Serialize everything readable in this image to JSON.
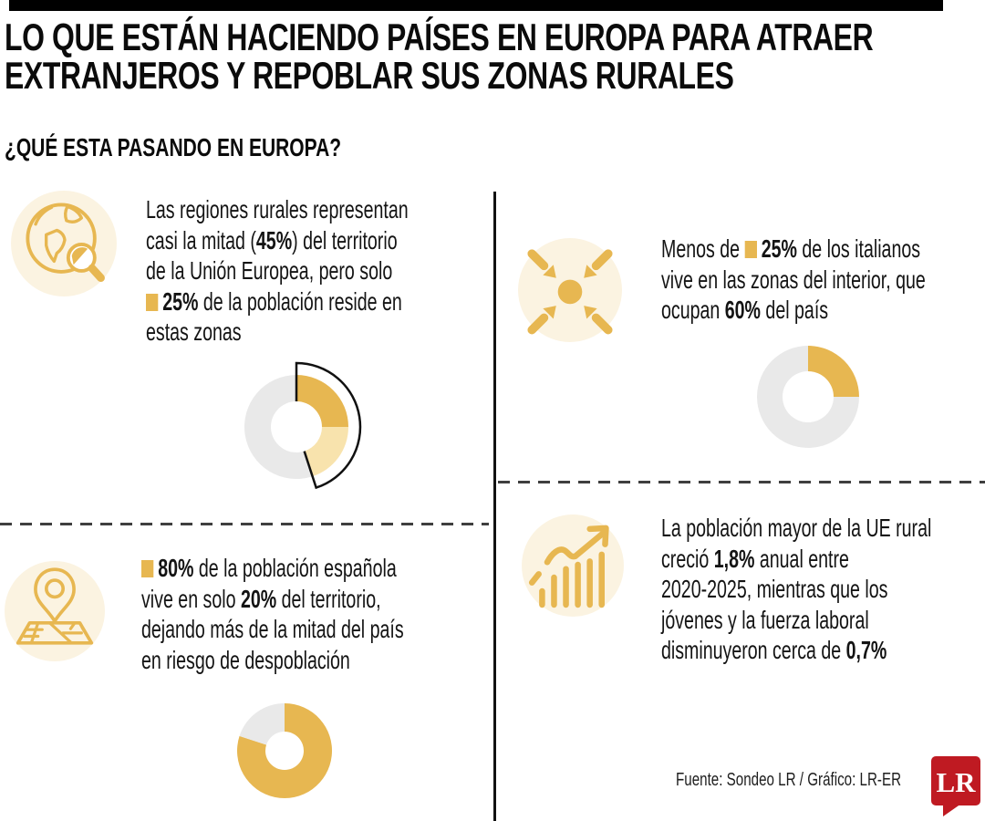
{
  "colors": {
    "gold": "#E7B751",
    "gold_light": "#F8E3AD",
    "cream": "#FBF3E1",
    "gray": "#E9E9E9",
    "ink": "#141414",
    "red": "#BF1A22",
    "dash": "#3F3F3F",
    "topbar": "#000000"
  },
  "header": {
    "title_line1": "LO QUE ESTÁN HACIENDO PAÍSES EN EUROPA PARA ATRAER",
    "title_line2": "EXTRANJEROS Y REPOBLAR SUS ZONAS RURALES",
    "section_heading": "¿QUÉ ESTA PASANDO EN EUROPA?"
  },
  "panels": [
    {
      "id": "eu-rural",
      "icon": "globe-magnifier-icon",
      "lines": [
        [
          {
            "t": "Las regiones rurales representan"
          }
        ],
        [
          {
            "t": "casi la mitad ("
          },
          {
            "t": "45%",
            "b": true
          },
          {
            "t": ") del territorio"
          }
        ],
        [
          {
            "t": "de la Unión Europea, pero solo"
          }
        ],
        [
          {
            "sq": true
          },
          {
            "t": "25%",
            "b": true
          },
          {
            "t": " de la población reside en"
          }
        ],
        [
          {
            "t": "estas zonas"
          }
        ]
      ]
    },
    {
      "id": "italia-interior",
      "icon": "converge-arrows-icon",
      "lines": [
        [
          {
            "t": "Menos de "
          },
          {
            "sq": true
          },
          {
            "t": "25%",
            "b": true
          },
          {
            "t": " de los italianos"
          }
        ],
        [
          {
            "t": "vive en las zonas del interior, que"
          }
        ],
        [
          {
            "t": "ocupan "
          },
          {
            "t": "60%",
            "b": true
          },
          {
            "t": " del país"
          }
        ]
      ]
    },
    {
      "id": "espana-despoblacion",
      "icon": "map-pin-icon",
      "lines": [
        [
          {
            "sq": true
          },
          {
            "t": "80%",
            "b": true
          },
          {
            "t": " de la población española"
          }
        ],
        [
          {
            "t": "vive en solo "
          },
          {
            "t": "20%",
            "b": true
          },
          {
            "t": " del territorio,"
          }
        ],
        [
          {
            "t": "dejando más de la mitad del país"
          }
        ],
        [
          {
            "t": "en riesgo de despoblación"
          }
        ]
      ]
    },
    {
      "id": "ue-mayores",
      "icon": "growth-chart-icon",
      "lines": [
        [
          {
            "t": "La población mayor de la UE rural"
          }
        ],
        [
          {
            "t": "creció "
          },
          {
            "t": "1,8%",
            "b": true
          },
          {
            "t": " anual entre"
          }
        ],
        [
          {
            "t": "2020-2025, mientras que los"
          }
        ],
        [
          {
            "t": "jóvenes y la fuerza laboral"
          }
        ],
        [
          {
            "t": "disminuyeron cerca de "
          },
          {
            "t": "0,7%",
            "b": true
          }
        ]
      ]
    }
  ],
  "chart_data": [
    {
      "type": "donut",
      "panel": "eu-rural",
      "segments": [
        {
          "label": "población que reside en zonas rurales",
          "value": 25,
          "color": "#E7B751"
        },
        {
          "label": "territorio rural adicional (hasta 45%)",
          "value": 20,
          "color": "#F8E3AD"
        },
        {
          "label": "resto",
          "value": 55,
          "color": "#E9E9E9"
        }
      ],
      "outline_arc": {
        "label": "45% del territorio de la UE",
        "start_pct": 0,
        "end_pct": 45,
        "color": "#111111"
      }
    },
    {
      "type": "donut",
      "panel": "italia-interior",
      "segments": [
        {
          "label": "italianos en zonas del interior",
          "value": 25,
          "color": "#E7B751"
        },
        {
          "label": "resto",
          "value": 75,
          "color": "#E9E9E9"
        }
      ]
    },
    {
      "type": "donut",
      "panel": "espana-despoblacion",
      "segments": [
        {
          "label": "población española en 20% del territorio",
          "value": 80,
          "color": "#E7B751"
        },
        {
          "label": "resto",
          "value": 20,
          "color": "#E9E9E9"
        }
      ]
    }
  ],
  "footer": {
    "source": "Fuente: Sondeo LR / Gráfico: LR-ER",
    "logo_text": "LR"
  }
}
